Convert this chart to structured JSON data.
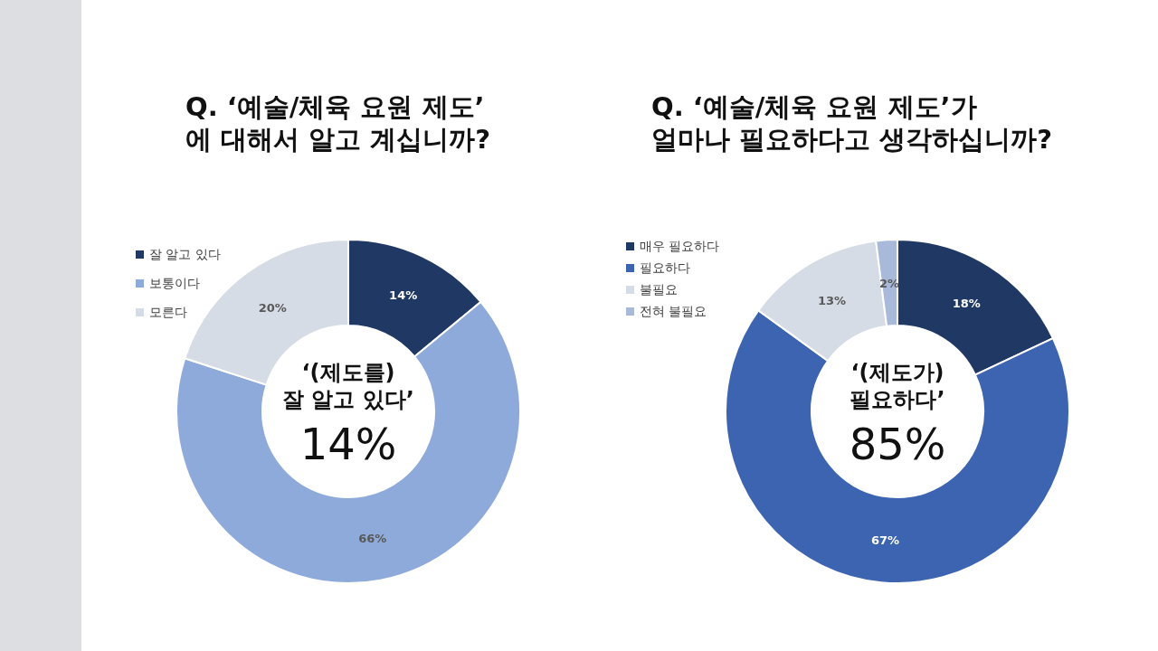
{
  "chart_data": [
    {
      "type": "donut",
      "title": "Q. ‘예술/체육 요원 제도’\n에 대해서 알고 계십니까?",
      "categories": [
        "잘 알고 있다",
        "보통이다",
        "모른다"
      ],
      "values": [
        14,
        66,
        20
      ],
      "value_labels": [
        "14%",
        "66%",
        "20%"
      ],
      "colors": [
        "#1f3864",
        "#8eaadb",
        "#d6dce5"
      ],
      "legend": "top left",
      "annotations": [
        "‘(제도를)\n잘 알고 있다’",
        "14%"
      ]
    },
    {
      "type": "donut",
      "title": "Q. ‘예술/체육 요원 제도’가\n얼마나 필요하다고 생각하십니까?",
      "categories": [
        "매우 필요하다",
        "필요하다",
        "불필요",
        "전혀 불필요"
      ],
      "values": [
        18,
        67,
        13,
        2
      ],
      "value_labels": [
        "18%",
        "67%",
        "13%",
        "2%"
      ],
      "colors": [
        "#1f3864",
        "#3c64b1",
        "#d6dce5",
        "#a9b9d9"
      ],
      "legend": "top left",
      "annotations": [
        "‘(제도가)\n필요하다’",
        "85%"
      ]
    }
  ]
}
